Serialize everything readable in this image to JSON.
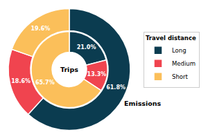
{
  "chart_data": {
    "type": "pie",
    "legend_title": "Travel distance",
    "legend": "right",
    "data_labels": true,
    "categories": [
      "Long",
      "Medium",
      "Short"
    ],
    "colors": [
      "#0b3c50",
      "#f0444f",
      "#fbbf5a"
    ],
    "series": [
      {
        "name": "Trips",
        "values": [
          21.0,
          13.3,
          65.7
        ],
        "value_labels": [
          "21.0%",
          "13.3%",
          "65.7%"
        ]
      },
      {
        "name": "Emissions",
        "values": [
          61.8,
          18.6,
          19.6
        ],
        "value_labels": [
          "61.8%",
          "18.6%",
          "19.6%"
        ]
      }
    ]
  }
}
